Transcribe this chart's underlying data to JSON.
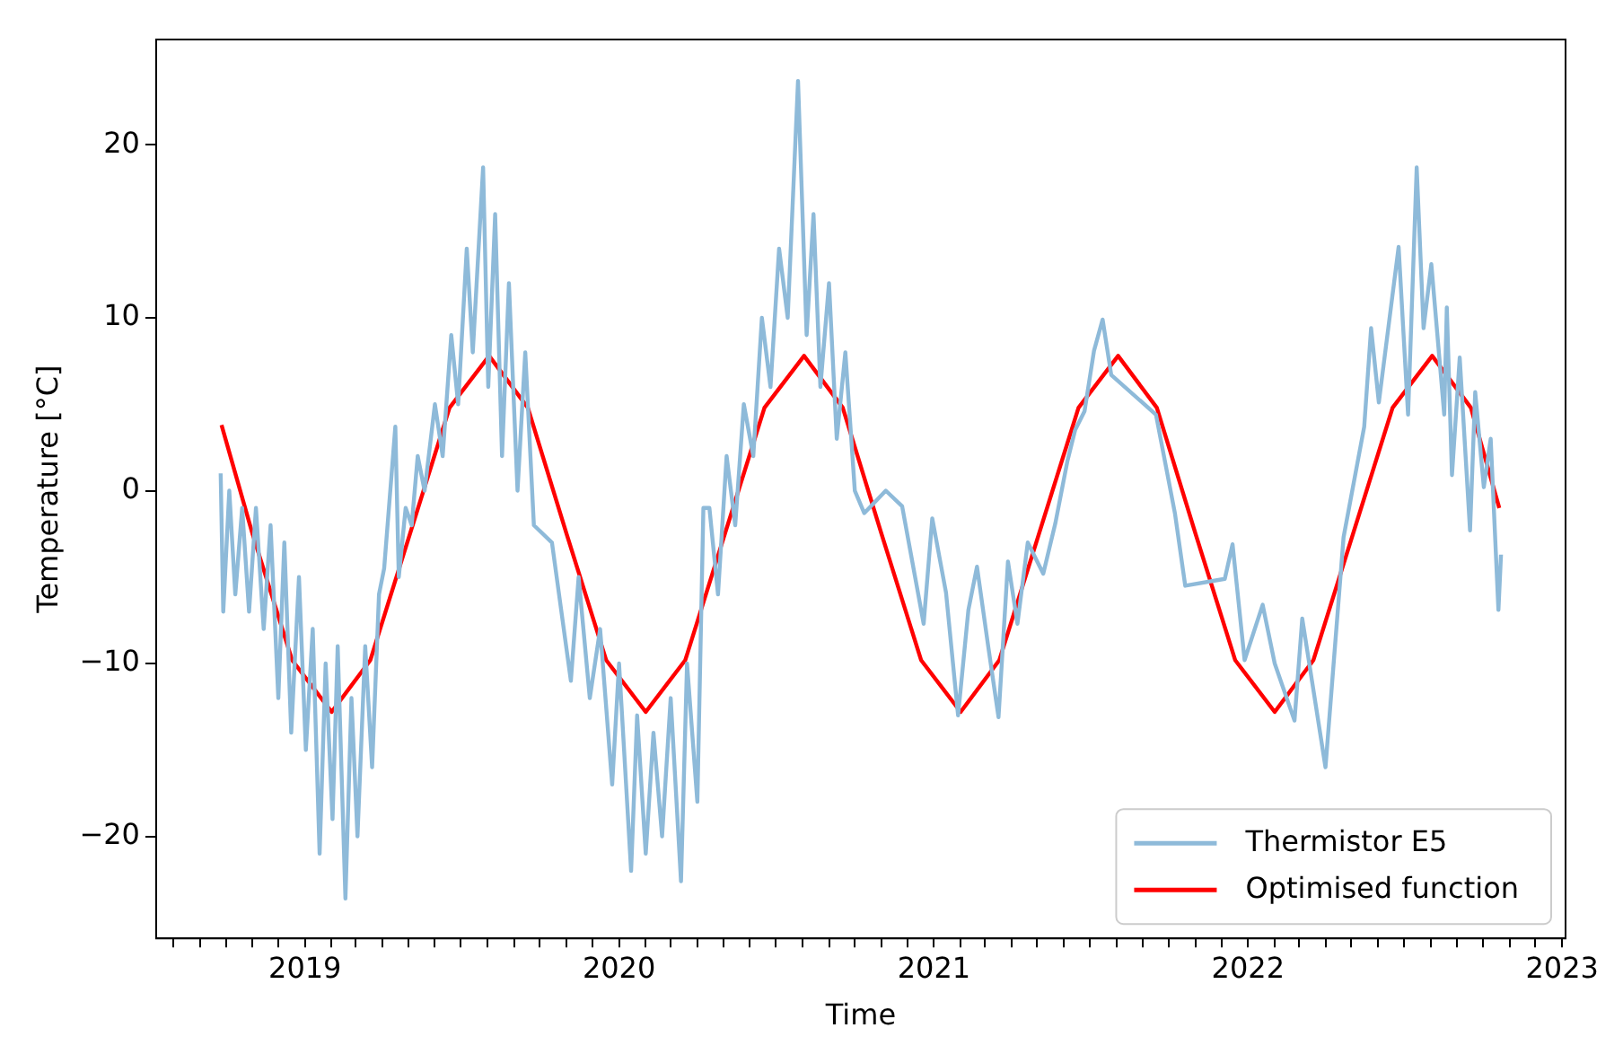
{
  "chart_data": {
    "type": "line",
    "xlabel": "Time",
    "ylabel": "Temperature [°C]",
    "xlim": [
      "2018-07-12",
      "2023-01-05"
    ],
    "ylim": [
      -25.9,
      26.1
    ],
    "yticks": [
      -20,
      -10,
      0,
      10,
      20
    ],
    "xticks": [
      {
        "value": "2018-08-01",
        "label": null
      },
      {
        "value": "2018-09-01",
        "label": null
      },
      {
        "value": "2018-10-01",
        "label": null
      },
      {
        "value": "2018-11-01",
        "label": null
      },
      {
        "value": "2018-12-01",
        "label": null
      },
      {
        "value": "2019-01-01",
        "label": "2019"
      },
      {
        "value": "2019-02-01",
        "label": null
      },
      {
        "value": "2019-03-01",
        "label": null
      },
      {
        "value": "2019-04-01",
        "label": null
      },
      {
        "value": "2019-05-01",
        "label": null
      },
      {
        "value": "2019-06-01",
        "label": null
      },
      {
        "value": "2019-07-01",
        "label": null
      },
      {
        "value": "2019-08-01",
        "label": null
      },
      {
        "value": "2019-09-01",
        "label": null
      },
      {
        "value": "2019-10-01",
        "label": null
      },
      {
        "value": "2019-11-01",
        "label": null
      },
      {
        "value": "2019-12-01",
        "label": null
      },
      {
        "value": "2020-01-01",
        "label": "2020"
      },
      {
        "value": "2020-02-01",
        "label": null
      },
      {
        "value": "2020-03-01",
        "label": null
      },
      {
        "value": "2020-04-01",
        "label": null
      },
      {
        "value": "2020-05-01",
        "label": null
      },
      {
        "value": "2020-06-01",
        "label": null
      },
      {
        "value": "2020-07-01",
        "label": null
      },
      {
        "value": "2020-08-01",
        "label": null
      },
      {
        "value": "2020-09-01",
        "label": null
      },
      {
        "value": "2020-10-01",
        "label": null
      },
      {
        "value": "2020-11-01",
        "label": null
      },
      {
        "value": "2020-12-01",
        "label": null
      },
      {
        "value": "2021-01-01",
        "label": "2021"
      },
      {
        "value": "2021-02-01",
        "label": null
      },
      {
        "value": "2021-03-01",
        "label": null
      },
      {
        "value": "2021-04-01",
        "label": null
      },
      {
        "value": "2021-05-01",
        "label": null
      },
      {
        "value": "2021-06-01",
        "label": null
      },
      {
        "value": "2021-07-01",
        "label": null
      },
      {
        "value": "2021-08-01",
        "label": null
      },
      {
        "value": "2021-09-01",
        "label": null
      },
      {
        "value": "2021-10-01",
        "label": null
      },
      {
        "value": "2021-11-01",
        "label": null
      },
      {
        "value": "2021-12-01",
        "label": null
      },
      {
        "value": "2022-01-01",
        "label": "2022"
      },
      {
        "value": "2022-02-01",
        "label": null
      },
      {
        "value": "2022-03-01",
        "label": null
      },
      {
        "value": "2022-04-01",
        "label": null
      },
      {
        "value": "2022-05-01",
        "label": null
      },
      {
        "value": "2022-06-01",
        "label": null
      },
      {
        "value": "2022-07-01",
        "label": null
      },
      {
        "value": "2022-08-01",
        "label": null
      },
      {
        "value": "2022-09-01",
        "label": null
      },
      {
        "value": "2022-10-01",
        "label": null
      },
      {
        "value": "2022-11-01",
        "label": null
      },
      {
        "value": "2022-12-01",
        "label": null
      },
      {
        "value": "2023-01-01",
        "label": "2023"
      }
    ],
    "grid": false,
    "legend": "bottom right",
    "marker": "none",
    "line_style": "solid",
    "series": [
      {
        "name": "Thermistor E5",
        "color": "#8ebad9",
        "x": [
          "2018-09-25",
          "2018-09-28",
          "2018-10-05",
          "2018-10-12",
          "2018-10-20",
          "2018-10-28",
          "2018-11-05",
          "2018-11-14",
          "2018-11-22",
          "2018-12-01",
          "2018-12-08",
          "2018-12-16",
          "2018-12-25",
          "2019-01-02",
          "2019-01-10",
          "2019-01-18",
          "2019-01-25",
          "2019-02-02",
          "2019-02-08",
          "2019-02-17",
          "2019-02-24",
          "2019-03-03",
          "2019-03-12",
          "2019-03-20",
          "2019-03-28",
          "2019-04-03",
          "2019-04-16",
          "2019-04-20",
          "2019-04-28",
          "2019-05-05",
          "2019-05-12",
          "2019-05-20",
          "2019-06-01",
          "2019-06-10",
          "2019-06-20",
          "2019-06-28",
          "2019-07-08",
          "2019-07-15",
          "2019-07-27",
          "2019-08-02",
          "2019-08-10",
          "2019-08-18",
          "2019-08-26",
          "2019-09-05",
          "2019-09-14",
          "2019-09-24",
          "2019-10-15",
          "2019-11-06",
          "2019-11-15",
          "2019-11-28",
          "2019-12-10",
          "2019-12-24",
          "2020-01-01",
          "2020-01-15",
          "2020-01-22",
          "2020-02-01",
          "2020-02-10",
          "2020-02-20",
          "2020-03-01",
          "2020-03-13",
          "2020-03-20",
          "2020-04-01",
          "2020-04-08",
          "2020-04-15",
          "2020-04-25",
          "2020-05-05",
          "2020-05-15",
          "2020-05-25",
          "2020-06-05",
          "2020-06-15",
          "2020-06-25",
          "2020-07-05",
          "2020-07-15",
          "2020-07-27",
          "2020-08-06",
          "2020-08-14",
          "2020-08-22",
          "2020-09-01",
          "2020-09-10",
          "2020-09-20",
          "2020-10-01",
          "2020-10-12",
          "2020-11-06",
          "2020-11-25",
          "2020-12-20",
          "2020-12-30",
          "2021-01-15",
          "2021-01-29",
          "2021-02-10",
          "2021-02-20",
          "2021-03-05",
          "2021-03-17",
          "2021-03-28",
          "2021-04-08",
          "2021-04-20",
          "2021-05-08",
          "2021-05-22",
          "2021-06-05",
          "2021-06-14",
          "2021-06-25",
          "2021-07-06",
          "2021-07-16",
          "2021-07-26",
          "2021-09-16",
          "2021-10-08",
          "2021-10-20",
          "2021-12-05",
          "2021-12-14",
          "2021-12-28",
          "2022-01-18",
          "2022-02-01",
          "2022-02-24",
          "2022-03-05",
          "2022-04-01",
          "2022-04-22",
          "2022-05-16",
          "2022-05-24",
          "2022-06-02",
          "2022-06-25",
          "2022-07-06",
          "2022-07-16",
          "2022-07-24",
          "2022-08-02",
          "2022-08-17",
          "2022-08-20",
          "2022-08-26",
          "2022-09-04",
          "2022-09-16",
          "2022-09-22",
          "2022-10-02",
          "2022-10-10",
          "2022-10-19",
          "2022-10-22"
        ],
        "values": [
          1,
          -7,
          0,
          -6,
          -1,
          -7,
          -1,
          -8,
          -2,
          -12,
          -3,
          -14,
          -5,
          -15,
          -8,
          -21,
          -10,
          -19,
          -9,
          -23.6,
          -12,
          -20,
          -9,
          -16,
          -6,
          -4.5,
          3.7,
          -5,
          -1,
          -2,
          2,
          0,
          5,
          2,
          9,
          5,
          14,
          8,
          18.7,
          6,
          16,
          2,
          12,
          0,
          8,
          -2,
          -3,
          -11,
          -5,
          -12,
          -8,
          -17,
          -10,
          -22,
          -13,
          -21,
          -14,
          -20,
          -12,
          -22.6,
          -10,
          -18,
          -1,
          -1,
          -6,
          2,
          -2,
          5,
          2,
          10,
          6,
          14,
          10,
          23.7,
          9,
          16,
          6,
          12,
          3,
          8,
          0,
          -1.3,
          0,
          -0.9,
          -7.7,
          -1.6,
          -5.9,
          -13,
          -6.9,
          -4.4,
          -9,
          -13.1,
          -4.1,
          -7.7,
          -3,
          -4.8,
          -1.9,
          1.7,
          3.5,
          4.6,
          8.1,
          9.9,
          6.7,
          4.4,
          -1.3,
          -5.5,
          -5.1,
          -3.1,
          -9.8,
          -6.6,
          -10,
          -13.3,
          -7.4,
          -16,
          -2.7,
          3.7,
          9.4,
          5.1,
          14.1,
          4.4,
          18.7,
          9.4,
          13.1,
          4.4,
          10.6,
          0.9,
          7.7,
          -2.3,
          5.7,
          0.2,
          3,
          -6.9,
          -3.7
        ]
      },
      {
        "name": "Optimised function",
        "color": "#ff0000",
        "x": [
          "2018-09-26",
          "2018-11-01",
          "2018-12-17",
          "2019-02-01",
          "2019-03-18",
          "2019-05-03",
          "2019-06-18",
          "2019-08-03",
          "2019-09-17",
          "2019-11-01",
          "2019-12-17",
          "2020-02-01",
          "2020-03-18",
          "2020-05-03",
          "2020-06-18",
          "2020-08-03",
          "2020-09-17",
          "2020-11-01",
          "2020-12-17",
          "2021-02-01",
          "2021-03-18",
          "2021-05-03",
          "2021-06-18",
          "2021-08-03",
          "2021-09-17",
          "2021-11-01",
          "2021-12-17",
          "2022-02-01",
          "2022-03-18",
          "2022-05-03",
          "2022-06-18",
          "2022-08-03",
          "2022-09-17",
          "2022-10-20"
        ],
        "values": [
          3.8,
          -2.5,
          -9.8,
          -12.8,
          -9.8,
          -2.5,
          4.8,
          7.8,
          4.8,
          -2.5,
          -9.8,
          -12.8,
          -9.8,
          -2.5,
          4.8,
          7.8,
          4.8,
          -2.5,
          -9.8,
          -12.8,
          -9.8,
          -2.5,
          4.8,
          7.8,
          4.8,
          -2.5,
          -9.8,
          -12.8,
          -9.8,
          -2.5,
          4.8,
          7.8,
          4.8,
          -1
        ]
      }
    ]
  }
}
